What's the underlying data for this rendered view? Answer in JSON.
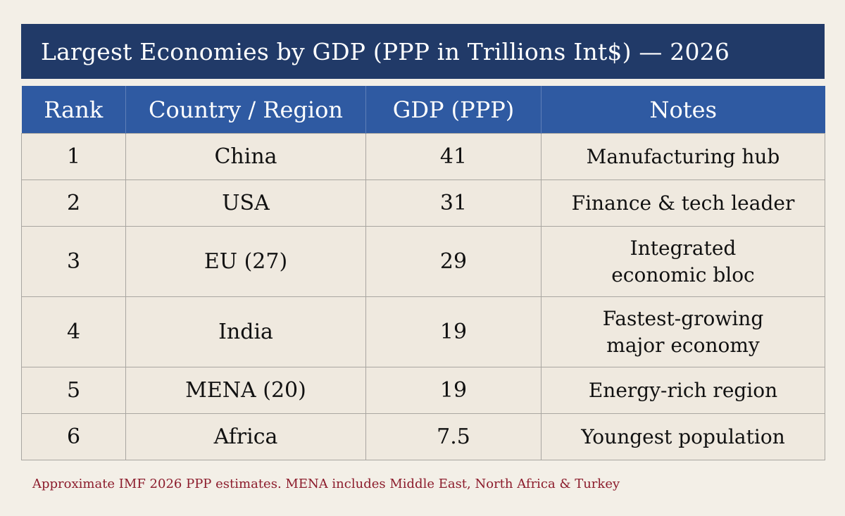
{
  "title": "Largest Economies by GDP (PPP in Trillions Int$) — 2026",
  "footnote": "Approximate IMF 2026 PPP estimates. MENA includes Middle East, North Africa & Turkey",
  "colors": {
    "title_bg": "#213a68",
    "header_bg": "#2f5aa2",
    "cell_bg": "#efe9df",
    "page_bg": "#f3efe7",
    "footnote": "#8c1c2c"
  },
  "chart_data": {
    "type": "table",
    "title": "Largest Economies by GDP (PPP in Trillions Int$) — 2026",
    "columns": [
      "Rank",
      "Country / Region",
      "GDP (PPP)",
      "Notes"
    ],
    "rows": [
      {
        "rank": "1",
        "country": "China",
        "gdp": "41",
        "notes": [
          "Manufacturing hub"
        ]
      },
      {
        "rank": "2",
        "country": "USA",
        "gdp": "31",
        "notes": [
          "Finance & tech leader"
        ]
      },
      {
        "rank": "3",
        "country": "EU (27)",
        "gdp": "29",
        "notes": [
          "Integrated",
          "economic bloc"
        ]
      },
      {
        "rank": "4",
        "country": "India",
        "gdp": "19",
        "notes": [
          "Fastest-growing",
          "major economy"
        ]
      },
      {
        "rank": "5",
        "country": "MENA (20)",
        "gdp": "19",
        "notes": [
          "Energy-rich region"
        ]
      },
      {
        "rank": "6",
        "country": "Africa",
        "gdp": "7.5",
        "notes": [
          "Youngest population"
        ]
      }
    ]
  }
}
